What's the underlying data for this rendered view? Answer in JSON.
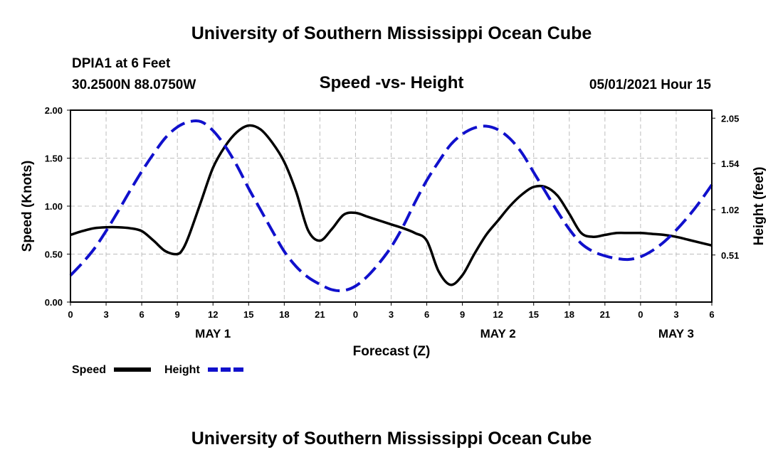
{
  "header": {
    "title": "University of Southern Mississippi Ocean Cube",
    "station": "DPIA1 at 6 Feet",
    "coords": "30.2500N  88.0750W",
    "subtitle": "Speed -vs- Height",
    "datetime": "05/01/2021 Hour 15"
  },
  "footer": {
    "title": "University of Southern Mississippi Ocean Cube"
  },
  "chart_data": {
    "type": "line",
    "title": "Speed -vs- Height",
    "xlabel": "Forecast (Z)",
    "ylabel": "Speed (Knots)",
    "y2label": "Height (feet)",
    "xlim": [
      0,
      54
    ],
    "ylim": [
      0,
      2.0
    ],
    "y2lim": [
      -0.02,
      2.14
    ],
    "grid": true,
    "x_tick_values": [
      0,
      3,
      6,
      9,
      12,
      15,
      18,
      21,
      24,
      27,
      30,
      33,
      36,
      39,
      42,
      45,
      48,
      51,
      54
    ],
    "x_tick_labels": [
      "0",
      "3",
      "6",
      "9",
      "12",
      "15",
      "18",
      "21",
      "0",
      "3",
      "6",
      "9",
      "12",
      "15",
      "18",
      "21",
      "0",
      "3",
      "6"
    ],
    "y_ticks": [
      0.0,
      0.5,
      1.0,
      1.5,
      2.0
    ],
    "y_tick_labels": [
      "0.00",
      "0.50",
      "1.00",
      "1.50",
      "2.00"
    ],
    "y2_ticks": [
      0.51,
      1.02,
      1.54,
      2.05
    ],
    "y2_tick_labels": [
      "0.51",
      "1.02",
      "1.54",
      "2.05"
    ],
    "date_labels": [
      {
        "label": "MAY 1",
        "x": 12
      },
      {
        "label": "MAY 2",
        "x": 36
      },
      {
        "label": "MAY 3",
        "x": 51
      }
    ],
    "series": [
      {
        "name": "Speed",
        "axis": "left",
        "color": "#000000",
        "style": "solid",
        "x": [
          0,
          1,
          2,
          3,
          4,
          5,
          6,
          7,
          8,
          9,
          9.5,
          10,
          11,
          12,
          13,
          14,
          15,
          16,
          17,
          18,
          19,
          20,
          21,
          22,
          23,
          24,
          25,
          26,
          27,
          28,
          29,
          30,
          31,
          32,
          33,
          34,
          35,
          36,
          37,
          38,
          39,
          40,
          41,
          42,
          43,
          44,
          45,
          46,
          47,
          48,
          49,
          50,
          51,
          52,
          53,
          54
        ],
        "values": [
          0.7,
          0.74,
          0.77,
          0.78,
          0.78,
          0.77,
          0.74,
          0.64,
          0.53,
          0.5,
          0.56,
          0.7,
          1.05,
          1.4,
          1.62,
          1.77,
          1.84,
          1.8,
          1.66,
          1.46,
          1.15,
          0.75,
          0.64,
          0.76,
          0.91,
          0.93,
          0.89,
          0.85,
          0.81,
          0.77,
          0.72,
          0.64,
          0.32,
          0.18,
          0.28,
          0.5,
          0.7,
          0.85,
          1.0,
          1.12,
          1.2,
          1.2,
          1.11,
          0.92,
          0.72,
          0.68,
          0.7,
          0.72,
          0.72,
          0.72,
          0.71,
          0.7,
          0.68,
          0.65,
          0.62,
          0.59
        ]
      },
      {
        "name": "Height",
        "axis": "right",
        "color": "#1010cc",
        "style": "dashed",
        "x": [
          0,
          1,
          2,
          3,
          4,
          5,
          6,
          7,
          8,
          9,
          10,
          11,
          12,
          13,
          14,
          15,
          16,
          17,
          18,
          19,
          20,
          21,
          22,
          23,
          24,
          25,
          26,
          27,
          28,
          29,
          30,
          31,
          32,
          33,
          34,
          35,
          36,
          37,
          38,
          39,
          40,
          41,
          42,
          43,
          44,
          45,
          46,
          47,
          48,
          49,
          50,
          51,
          52,
          53,
          54
        ],
        "values": [
          0.28,
          0.42,
          0.58,
          0.78,
          1.0,
          1.23,
          1.45,
          1.65,
          1.83,
          1.95,
          2.01,
          2.01,
          1.91,
          1.74,
          1.52,
          1.26,
          1.02,
          0.78,
          0.55,
          0.38,
          0.26,
          0.18,
          0.12,
          0.11,
          0.16,
          0.27,
          0.42,
          0.6,
          0.83,
          1.1,
          1.35,
          1.56,
          1.75,
          1.87,
          1.94,
          1.96,
          1.92,
          1.82,
          1.66,
          1.44,
          1.22,
          1.0,
          0.8,
          0.64,
          0.55,
          0.5,
          0.47,
          0.46,
          0.49,
          0.56,
          0.66,
          0.79,
          0.94,
          1.11,
          1.3
        ]
      }
    ],
    "legend": [
      {
        "label": "Speed",
        "color": "#000000",
        "style": "solid"
      },
      {
        "label": "Height",
        "color": "#1010cc",
        "style": "dashed"
      }
    ],
    "legend_position": "bottom-left"
  }
}
